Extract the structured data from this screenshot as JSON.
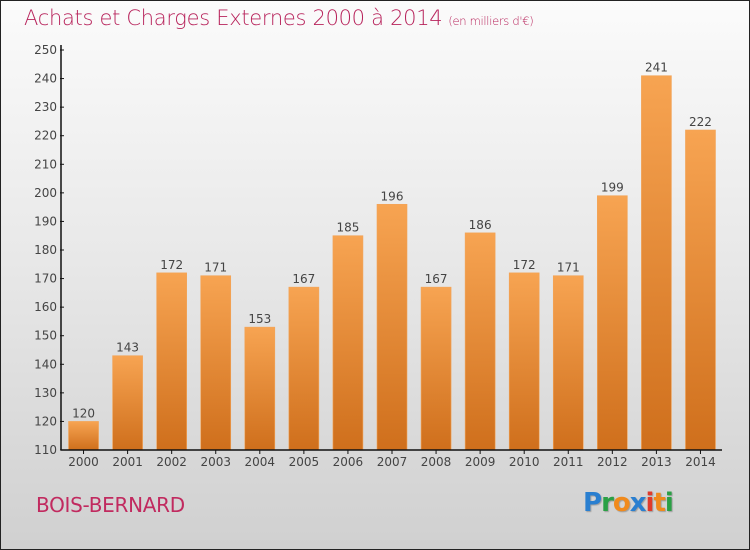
{
  "chart_data": {
    "type": "bar",
    "title": "Achats et Charges Externes 2000 à 2014",
    "unit_label": "(en milliers d'€)",
    "categories": [
      "2000",
      "2001",
      "2002",
      "2003",
      "2004",
      "2005",
      "2006",
      "2007",
      "2008",
      "2009",
      "2010",
      "2011",
      "2012",
      "2013",
      "2014"
    ],
    "values": [
      120,
      143,
      172,
      171,
      153,
      167,
      185,
      196,
      167,
      186,
      172,
      171,
      199,
      241,
      222
    ],
    "xlabel": "",
    "ylabel": "",
    "ylim": [
      110,
      250
    ],
    "yticks": [
      110,
      120,
      130,
      140,
      150,
      160,
      170,
      180,
      190,
      200,
      210,
      220,
      230,
      240,
      250
    ],
    "grid": false,
    "legend": "none",
    "bar_color_top": "#f7a452",
    "bar_color_bottom": "#cf6f1c"
  },
  "commune": "BOIS-BERNARD",
  "logo": {
    "letters": [
      {
        "ch": "P",
        "color": "#2a7fd0"
      },
      {
        "ch": "r",
        "color": "#2aa045"
      },
      {
        "ch": "o",
        "color": "#f08a1c"
      },
      {
        "ch": "x",
        "color": "#2a7fd0"
      },
      {
        "ch": "i",
        "color": "#e03a2a"
      },
      {
        "ch": "t",
        "color": "#f08a1c"
      },
      {
        "ch": "i",
        "color": "#2aa045"
      }
    ]
  }
}
